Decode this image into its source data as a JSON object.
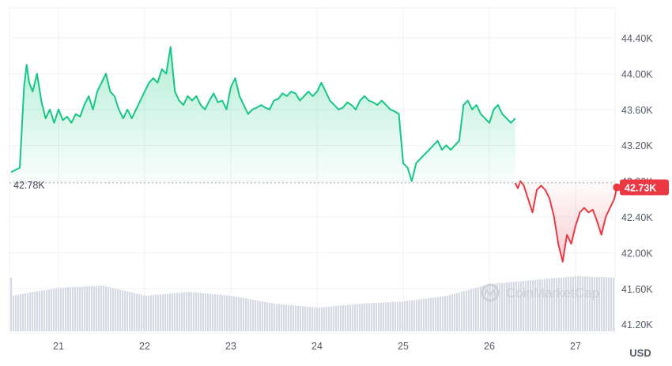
{
  "chart_data": {
    "type": "line",
    "title": "",
    "currency_unit": "USD",
    "x_tick_labels": [
      "21",
      "22",
      "23",
      "24",
      "25",
      "26",
      "27"
    ],
    "y_tick_labels": [
      "44.40K",
      "44.00K",
      "43.60K",
      "43.20K",
      "42.80K",
      "42.40K",
      "42.00K",
      "41.60K",
      "41.20K"
    ],
    "y_ticks": [
      44400,
      44000,
      43600,
      43200,
      42800,
      42400,
      42000,
      41600,
      41200
    ],
    "ylim": [
      41050,
      44750
    ],
    "xlim": [
      20.45,
      27.48
    ],
    "reference_value": 42780,
    "reference_label": "42.78K",
    "current_label": "42.73K",
    "colors": {
      "up": "#16c784",
      "down": "#ea3943",
      "volume": "#d6dae3",
      "grid": "#eff1f4",
      "reference": "#9aa0a8"
    },
    "watermark_text": "CoinMarketCap",
    "series": [
      {
        "points": [
          [
            20.45,
            42900
          ],
          [
            20.55,
            42950
          ],
          [
            20.6,
            43850
          ],
          [
            20.63,
            44100
          ],
          [
            20.66,
            43900
          ],
          [
            20.7,
            43800
          ],
          [
            20.75,
            44000
          ],
          [
            20.8,
            43700
          ],
          [
            20.85,
            43500
          ],
          [
            20.9,
            43600
          ],
          [
            20.95,
            43450
          ],
          [
            21.0,
            43600
          ],
          [
            21.05,
            43480
          ],
          [
            21.1,
            43520
          ],
          [
            21.15,
            43450
          ],
          [
            21.2,
            43550
          ],
          [
            21.25,
            43520
          ],
          [
            21.3,
            43650
          ],
          [
            21.35,
            43750
          ],
          [
            21.4,
            43600
          ],
          [
            21.45,
            43800
          ],
          [
            21.5,
            43900
          ],
          [
            21.55,
            44000
          ],
          [
            21.6,
            43800
          ],
          [
            21.65,
            43750
          ],
          [
            21.7,
            43600
          ],
          [
            21.75,
            43500
          ],
          [
            21.8,
            43600
          ],
          [
            21.85,
            43500
          ],
          [
            21.9,
            43600
          ],
          [
            21.95,
            43700
          ],
          [
            22.0,
            43800
          ],
          [
            22.05,
            43900
          ],
          [
            22.1,
            43950
          ],
          [
            22.15,
            43900
          ],
          [
            22.2,
            44050
          ],
          [
            22.25,
            44000
          ],
          [
            22.3,
            44300
          ],
          [
            22.35,
            43800
          ],
          [
            22.4,
            43700
          ],
          [
            22.45,
            43650
          ],
          [
            22.5,
            43750
          ],
          [
            22.55,
            43700
          ],
          [
            22.6,
            43750
          ],
          [
            22.65,
            43650
          ],
          [
            22.7,
            43600
          ],
          [
            22.75,
            43700
          ],
          [
            22.8,
            43780
          ],
          [
            22.85,
            43680
          ],
          [
            22.9,
            43700
          ],
          [
            22.95,
            43600
          ],
          [
            23.0,
            43850
          ],
          [
            23.05,
            43950
          ],
          [
            23.1,
            43750
          ],
          [
            23.15,
            43650
          ],
          [
            23.2,
            43550
          ],
          [
            23.25,
            43600
          ],
          [
            23.3,
            43620
          ],
          [
            23.35,
            43650
          ],
          [
            23.4,
            43620
          ],
          [
            23.45,
            43600
          ],
          [
            23.5,
            43700
          ],
          [
            23.55,
            43720
          ],
          [
            23.6,
            43780
          ],
          [
            23.65,
            43750
          ],
          [
            23.7,
            43800
          ],
          [
            23.75,
            43780
          ],
          [
            23.8,
            43700
          ],
          [
            23.85,
            43750
          ],
          [
            23.9,
            43800
          ],
          [
            23.95,
            43750
          ],
          [
            24.0,
            43800
          ],
          [
            24.05,
            43900
          ],
          [
            24.1,
            43800
          ],
          [
            24.15,
            43700
          ],
          [
            24.2,
            43650
          ],
          [
            24.25,
            43600
          ],
          [
            24.3,
            43620
          ],
          [
            24.35,
            43680
          ],
          [
            24.4,
            43650
          ],
          [
            24.45,
            43600
          ],
          [
            24.5,
            43700
          ],
          [
            24.55,
            43750
          ],
          [
            24.6,
            43700
          ],
          [
            24.65,
            43680
          ],
          [
            24.7,
            43650
          ],
          [
            24.75,
            43700
          ],
          [
            24.8,
            43650
          ],
          [
            24.85,
            43600
          ],
          [
            24.9,
            43580
          ],
          [
            24.95,
            43550
          ],
          [
            25.0,
            43000
          ],
          [
            25.05,
            42950
          ],
          [
            25.1,
            42800
          ],
          [
            25.15,
            43000
          ],
          [
            25.2,
            43050
          ],
          [
            25.25,
            43100
          ],
          [
            25.3,
            43150
          ],
          [
            25.35,
            43200
          ],
          [
            25.4,
            43250
          ],
          [
            25.45,
            43150
          ],
          [
            25.5,
            43200
          ],
          [
            25.55,
            43150
          ],
          [
            25.6,
            43200
          ],
          [
            25.65,
            43250
          ],
          [
            25.7,
            43650
          ],
          [
            25.75,
            43700
          ],
          [
            25.8,
            43600
          ],
          [
            25.85,
            43650
          ],
          [
            25.9,
            43550
          ],
          [
            25.95,
            43500
          ],
          [
            26.0,
            43450
          ],
          [
            26.05,
            43600
          ],
          [
            26.1,
            43650
          ],
          [
            26.15,
            43550
          ],
          [
            26.2,
            43500
          ],
          [
            26.25,
            43450
          ],
          [
            26.3,
            43500
          ]
        ]
      },
      {
        "points": [
          [
            26.3,
            42780
          ],
          [
            26.33,
            42720
          ],
          [
            26.36,
            42800
          ],
          [
            26.4,
            42750
          ],
          [
            26.45,
            42600
          ],
          [
            26.5,
            42450
          ],
          [
            26.55,
            42700
          ],
          [
            26.6,
            42750
          ],
          [
            26.65,
            42700
          ],
          [
            26.7,
            42600
          ],
          [
            26.75,
            42400
          ],
          [
            26.8,
            42100
          ],
          [
            26.85,
            41900
          ],
          [
            26.9,
            42200
          ],
          [
            26.95,
            42100
          ],
          [
            27.0,
            42300
          ],
          [
            27.05,
            42450
          ],
          [
            27.1,
            42500
          ],
          [
            27.15,
            42450
          ],
          [
            27.2,
            42480
          ],
          [
            27.25,
            42350
          ],
          [
            27.3,
            42200
          ],
          [
            27.35,
            42400
          ],
          [
            27.4,
            42500
          ],
          [
            27.45,
            42600
          ],
          [
            27.48,
            42730
          ]
        ]
      }
    ],
    "volume": [
      [
        20.45,
        0.45
      ],
      [
        20.7,
        0.5
      ],
      [
        21.0,
        0.55
      ],
      [
        21.5,
        0.58
      ],
      [
        22.0,
        0.45
      ],
      [
        22.5,
        0.5
      ],
      [
        23.0,
        0.45
      ],
      [
        23.5,
        0.35
      ],
      [
        24.0,
        0.3
      ],
      [
        24.5,
        0.35
      ],
      [
        25.0,
        0.38
      ],
      [
        25.5,
        0.45
      ],
      [
        26.0,
        0.6
      ],
      [
        26.5,
        0.65
      ],
      [
        27.0,
        0.7
      ],
      [
        27.48,
        0.68
      ]
    ]
  }
}
